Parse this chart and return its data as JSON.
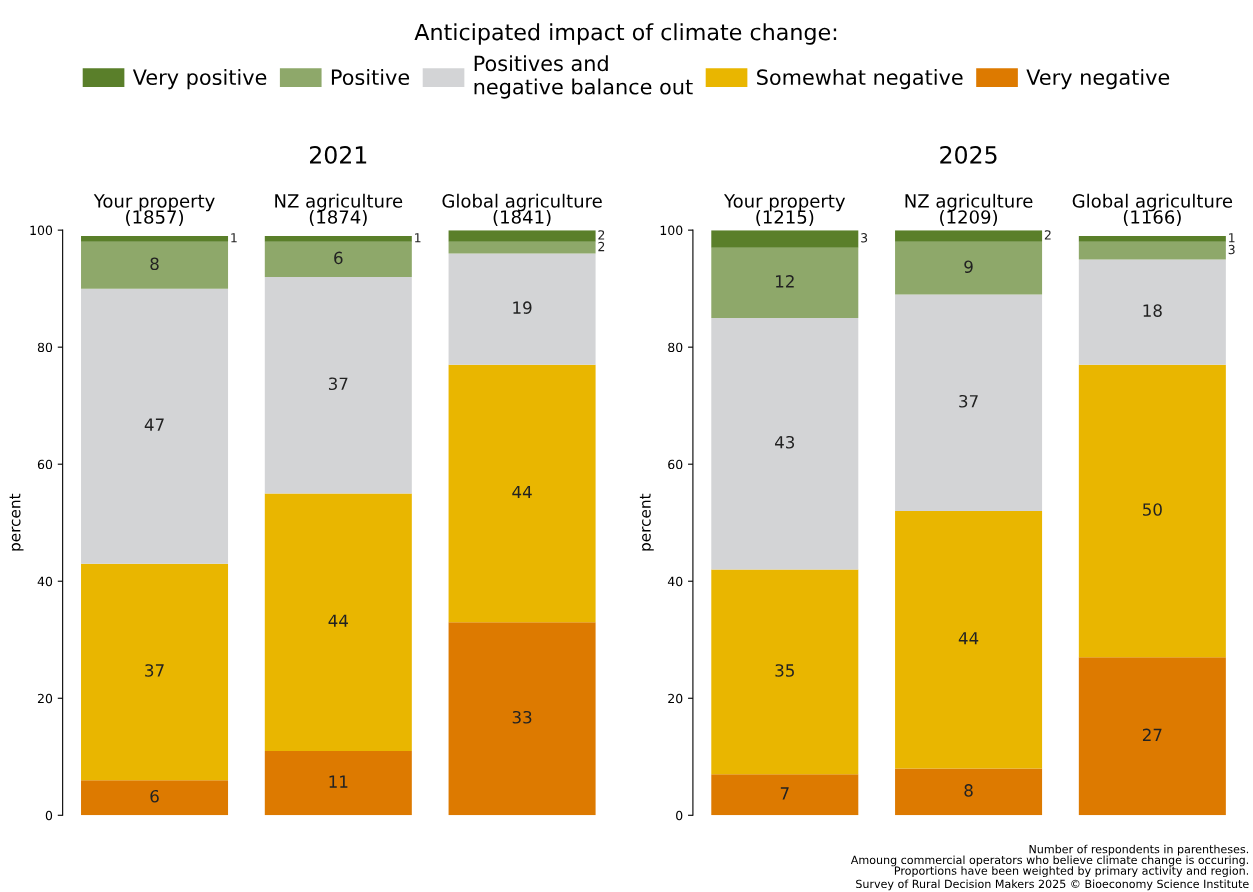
{
  "chart_data": [
    {
      "type": "bar",
      "stacked": true,
      "title": "2021",
      "ylabel": "percent",
      "legend": "top",
      "legend_title": "Anticipated impact of climate change:",
      "data_labels": true,
      "grid": false,
      "ylim": [
        0,
        100
      ],
      "yticks": [
        0,
        20,
        40,
        60,
        80,
        100
      ],
      "categories": [
        "Your property\n(1857)",
        "NZ agriculture\n(1874)",
        "Global agriculture\n(1841)"
      ],
      "series": [
        {
          "name": "Very negative",
          "color": "#dd7a00",
          "values": [
            6,
            11,
            33
          ]
        },
        {
          "name": "Somewhat negative",
          "color": "#e9b600",
          "values": [
            37,
            44,
            44
          ]
        },
        {
          "name": "Positives and\nnegative balance out",
          "color": "#d3d4d6",
          "values": [
            47,
            37,
            19
          ]
        },
        {
          "name": "Positive",
          "color": "#8ea86a",
          "values": [
            8,
            6,
            2
          ]
        },
        {
          "name": "Very positive",
          "color": "#5a7f2a",
          "values": [
            1,
            1,
            2
          ]
        }
      ]
    },
    {
      "type": "bar",
      "stacked": true,
      "title": "2025",
      "ylabel": "percent",
      "data_labels": true,
      "grid": false,
      "ylim": [
        0,
        100
      ],
      "yticks": [
        0,
        20,
        40,
        60,
        80,
        100
      ],
      "categories": [
        "Your property\n(1215)",
        "NZ agriculture\n(1209)",
        "Global agriculture\n(1166)"
      ],
      "series": [
        {
          "name": "Very negative",
          "color": "#dd7a00",
          "values": [
            7,
            8,
            27
          ]
        },
        {
          "name": "Somewhat negative",
          "color": "#e9b600",
          "values": [
            35,
            44,
            50
          ]
        },
        {
          "name": "Positives and\nnegative balance out",
          "color": "#d3d4d6",
          "values": [
            43,
            37,
            18
          ]
        },
        {
          "name": "Positive",
          "color": "#8ea86a",
          "values": [
            12,
            9,
            3
          ]
        },
        {
          "name": "Very positive",
          "color": "#5a7f2a",
          "values": [
            3,
            2,
            1
          ]
        }
      ],
      "annotations": [
        "Number of respondents in parentheses.",
        "Amoung commercial operators who believe climate change is occuring.",
        "Proportions have been weighted by primary activity and region.",
        "Survey of Rural Decision Makers 2025 © Bioeconomy Science Institute"
      ]
    }
  ]
}
